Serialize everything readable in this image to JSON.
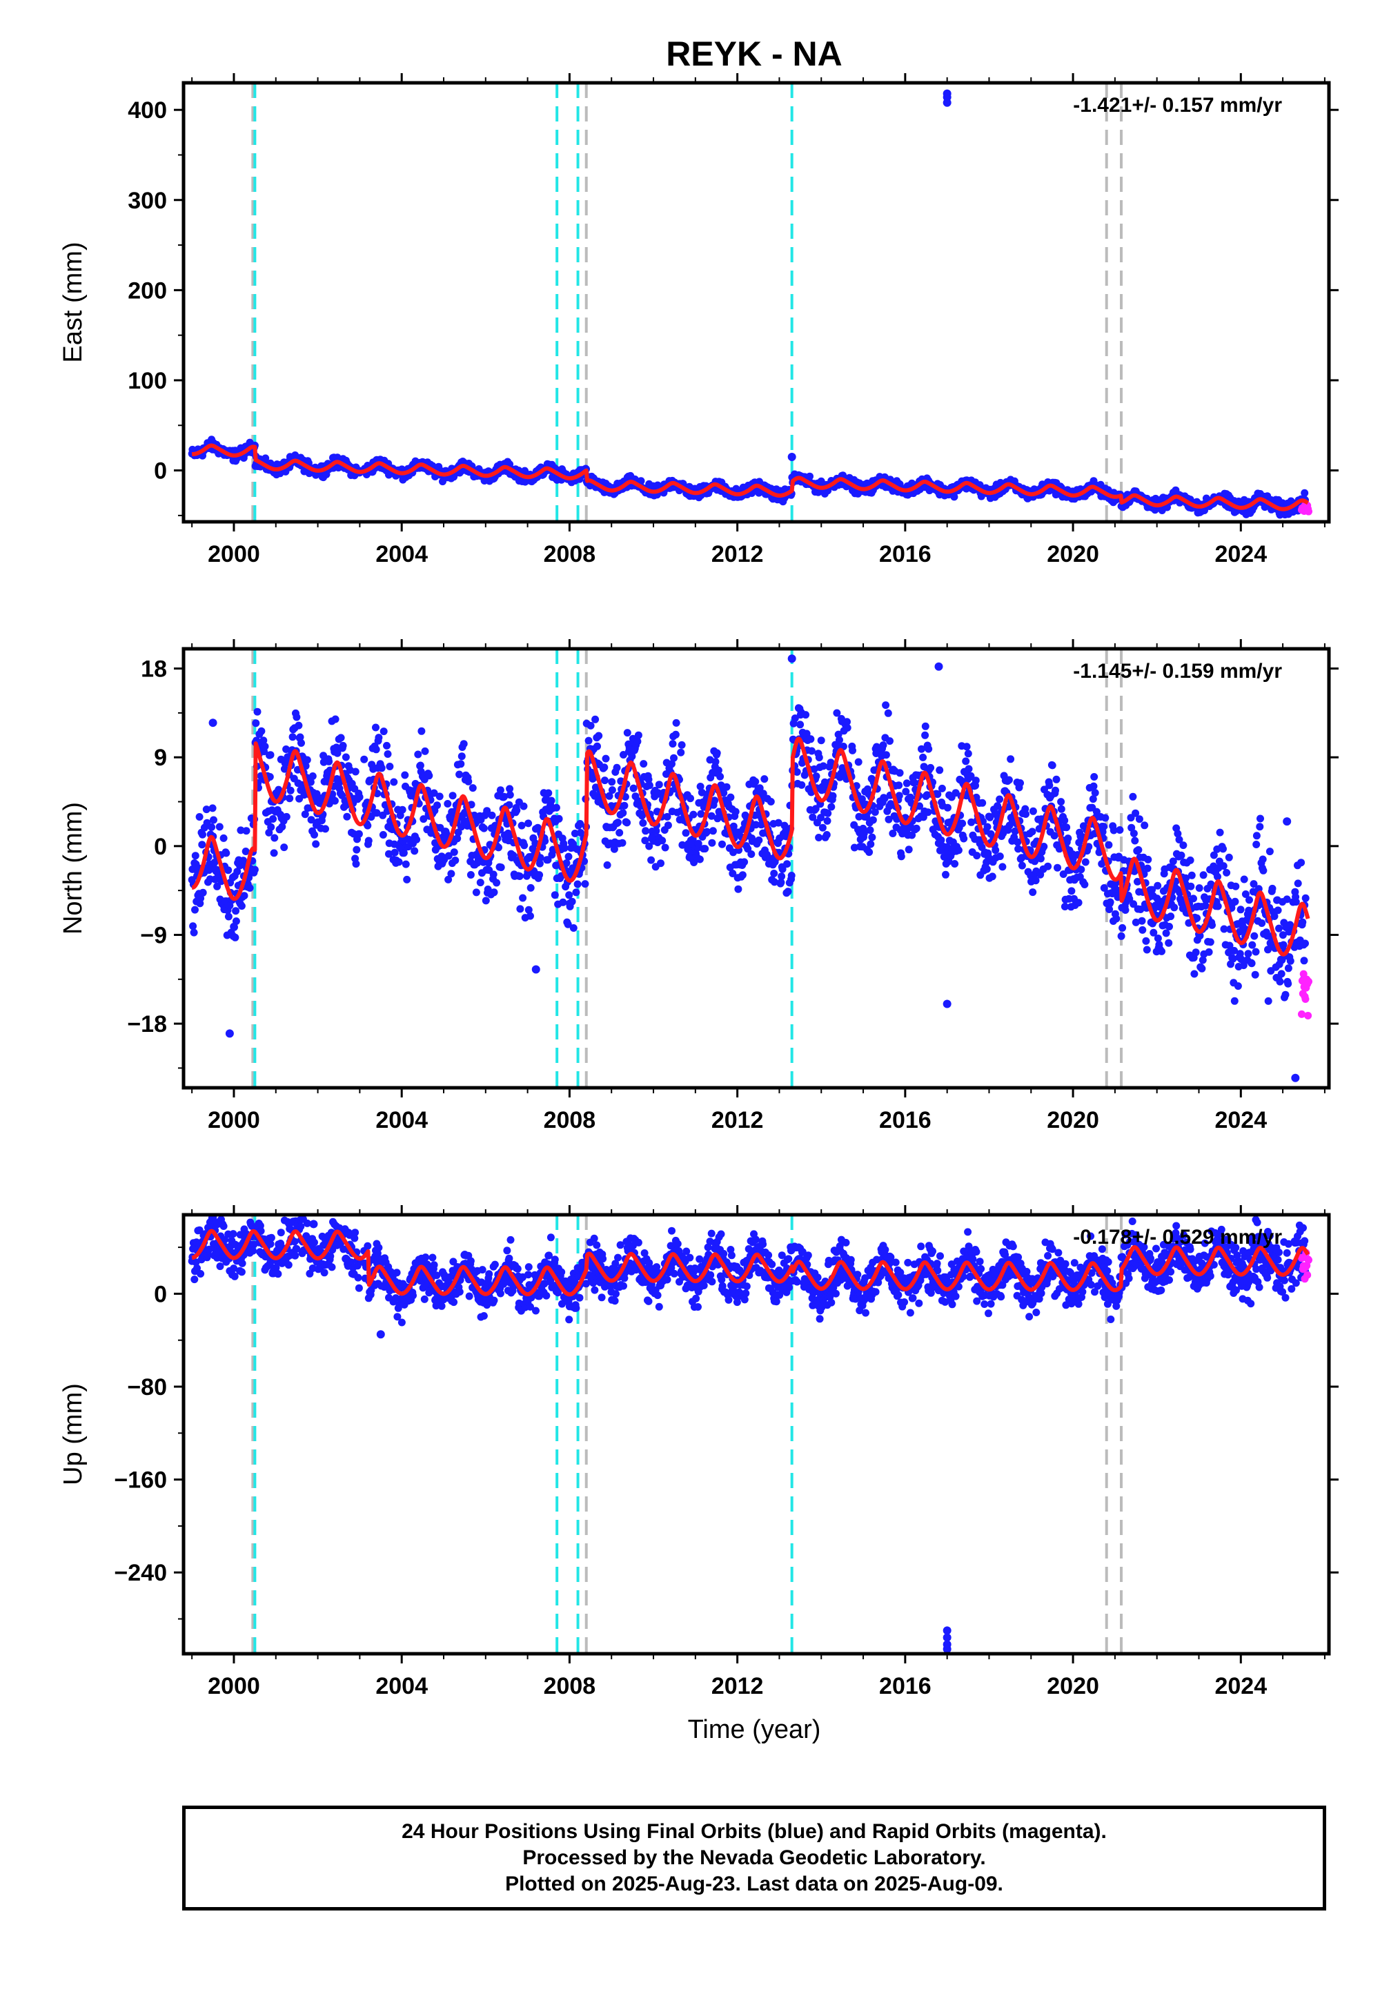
{
  "chart_data": {
    "type": "scatter",
    "title": "REYK - NA",
    "xlabel": "Time (year)",
    "xlim": [
      1998.8,
      2026.1
    ],
    "xticks": [
      2000,
      2004,
      2008,
      2012,
      2016,
      2020,
      2024
    ],
    "legend": "none",
    "colors": {
      "final": "#1a1aff",
      "rapid": "#ff22ff",
      "model": "#ff1a1a",
      "offset_cyan": "#22e6e6",
      "offset_grey": "#bbbbbb"
    },
    "offsets_cyan": [
      2000.5,
      2007.7,
      2008.2
    ],
    "offsets_grey": [
      2000.45,
      2008.4,
      2020.8,
      2021.15
    ],
    "panels": [
      {
        "component": "east",
        "ylabel": "East (mm)",
        "ylim": [
          -57,
          430
        ],
        "yticks": [
          0,
          100,
          200,
          300,
          400
        ],
        "rate_text": "-1.421+/- 0.157 mm/yr",
        "trend": {
          "start": 22,
          "slope": -1.421,
          "seasonal_amp": 4,
          "noise": 3
        },
        "steps": [
          {
            "x": 2000.5,
            "dy": -14
          },
          {
            "x": 2008.4,
            "dy": -12
          },
          {
            "x": 2013.3,
            "dy": 10
          },
          {
            "x": 2021.15,
            "dy": -8
          }
        ],
        "outliers": [
          [
            2017.0,
            418
          ],
          [
            2017.0,
            414
          ],
          [
            2017.0,
            408
          ],
          [
            2013.3,
            15
          ],
          [
            2010.7,
            -15
          ]
        ],
        "rapid_end": -42
      },
      {
        "component": "north",
        "ylabel": "North (mm)",
        "ylim": [
          -24.5,
          20.0
        ],
        "yticks": [
          -18,
          -9,
          0,
          9,
          18
        ],
        "rate_text": "-1.145+/- 0.159 mm/yr",
        "trend": {
          "start": -2.0,
          "slope": -1.145,
          "seasonal_amp": 2.2,
          "noise": 2.4
        },
        "steps": [
          {
            "x": 2000.5,
            "dy": 11
          },
          {
            "x": 2008.4,
            "dy": 8
          },
          {
            "x": 2013.3,
            "dy": 7
          },
          {
            "x": 2021.15,
            "dy": -3
          }
        ],
        "outliers": [
          [
            2013.3,
            19
          ],
          [
            2016.8,
            18.2
          ],
          [
            1999.9,
            -19
          ],
          [
            2007.2,
            -12.5
          ],
          [
            2017.0,
            -16
          ],
          [
            2025.3,
            -23.5
          ],
          [
            2025.1,
            2.5
          ],
          [
            1999.5,
            12.5
          ]
        ],
        "rapid_end": -15
      },
      {
        "component": "up",
        "ylabel": "Up (mm)",
        "ylim": [
          -310,
          68
        ],
        "yticks": [
          -240,
          -160,
          -80,
          0
        ],
        "rate_text": "-0.178+/- 0.529 mm/yr",
        "trend": {
          "start": 40,
          "slope": -0.178,
          "seasonal_amp": 9,
          "noise": 10
        },
        "steps": [
          {
            "x": 2003.2,
            "dy": -30
          },
          {
            "x": 2008.4,
            "dy": 12
          },
          {
            "x": 2013.3,
            "dy": -6
          },
          {
            "x": 2021.15,
            "dy": 14
          }
        ],
        "outliers": [
          [
            2017.0,
            -290
          ],
          [
            2017.0,
            -296
          ],
          [
            2017.0,
            -302
          ],
          [
            2017.0,
            -306
          ],
          [
            2001.9,
            60
          ],
          [
            2003.5,
            -35
          ]
        ],
        "rapid_end": 25
      }
    ]
  },
  "footer": {
    "line1": "24 Hour Positions Using Final Orbits (blue) and Rapid Orbits (magenta).",
    "line2": "Processed by the Nevada Geodetic Laboratory.",
    "line3": "Plotted on 2025-Aug-23. Last data on 2025-Aug-09."
  }
}
